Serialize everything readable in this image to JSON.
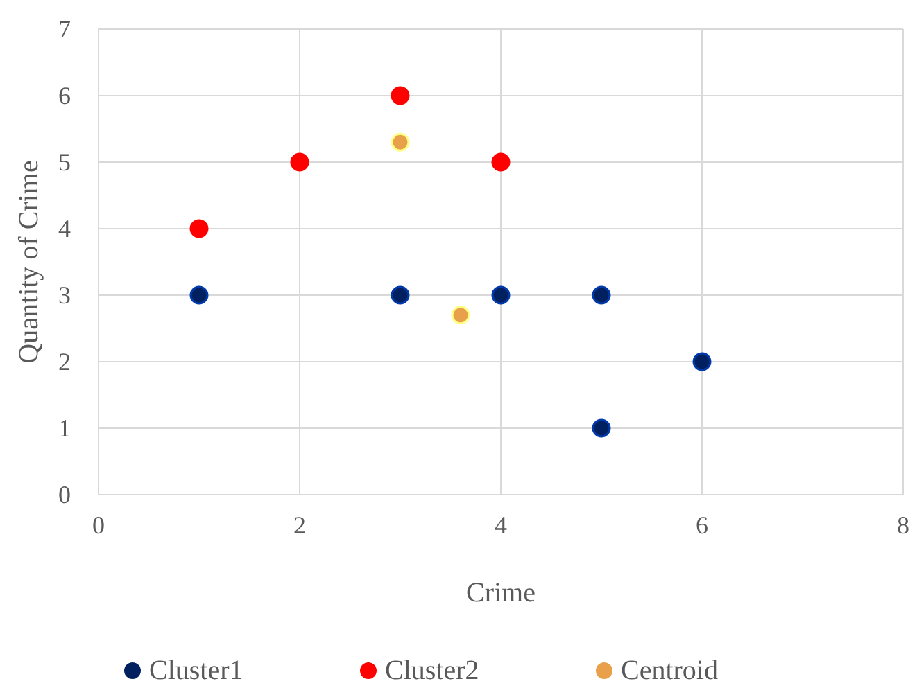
{
  "chart_data": {
    "type": "scatter",
    "xlabel": "Crime",
    "ylabel": "Quantity of Crime",
    "xlim": [
      0,
      8
    ],
    "xticks": [
      0,
      2,
      4,
      6,
      8
    ],
    "ylim": [
      0,
      7
    ],
    "yticks": [
      0,
      1,
      2,
      3,
      4,
      5,
      6,
      7
    ],
    "grid": true,
    "legend": "bottom",
    "marker": "circle",
    "series": [
      {
        "name": "Cluster1",
        "color": "#002060",
        "x": [
          1,
          3,
          4,
          5,
          5,
          6
        ],
        "values": [
          3,
          3,
          3,
          3,
          1,
          2
        ]
      },
      {
        "name": "Cluster2",
        "color": "#ff0000",
        "x": [
          1,
          2,
          3,
          4
        ],
        "values": [
          4,
          5,
          6,
          5
        ]
      },
      {
        "name": "Centroid",
        "color": "#e8a04a",
        "x": [
          3,
          3.6
        ],
        "values": [
          5.3,
          2.7
        ]
      }
    ]
  }
}
